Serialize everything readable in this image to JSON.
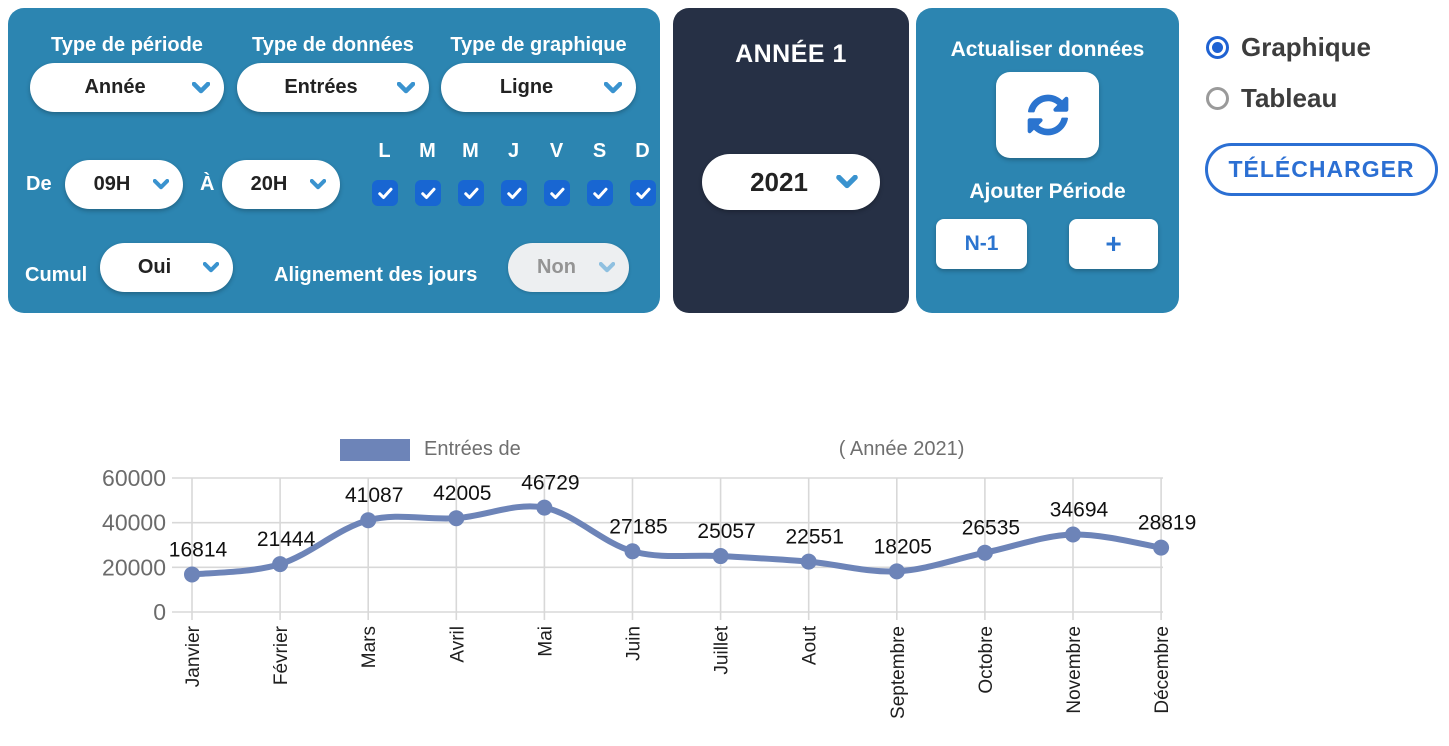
{
  "panel_filters": {
    "period": {
      "label": "Type de période",
      "value": "Année"
    },
    "data_type": {
      "label": "Type de données",
      "value": "Entrées"
    },
    "chart_type": {
      "label": "Type de graphique",
      "value": "Ligne"
    },
    "from_label": "De",
    "from_value": "09H",
    "to_label": "À",
    "to_value": "20H",
    "days": [
      {
        "label": "L",
        "checked": true
      },
      {
        "label": "M",
        "checked": true
      },
      {
        "label": "M",
        "checked": true
      },
      {
        "label": "J",
        "checked": true
      },
      {
        "label": "V",
        "checked": true
      },
      {
        "label": "S",
        "checked": true
      },
      {
        "label": "D",
        "checked": true
      }
    ],
    "cumul_label": "Cumul",
    "cumul_value": "Oui",
    "alignment_label": "Alignement des jours",
    "alignment_value": "Non"
  },
  "panel_year": {
    "title": "ANNÉE 1",
    "value": "2021"
  },
  "panel_actions": {
    "refresh_label": "Actualiser données",
    "add_period_label": "Ajouter Période",
    "n1_label": "N-1",
    "plus_label": "+"
  },
  "view_toggle": {
    "options": [
      {
        "label": "Graphique",
        "selected": true
      },
      {
        "label": "Tableau",
        "selected": false
      }
    ]
  },
  "download_label": "TÉLÉCHARGER",
  "colors": {
    "panel_blue": "#2c85b1",
    "panel_dark": "#263045",
    "checkbox_blue": "#1866d2",
    "accent_blue": "#2b74cf",
    "line_color": "#6d84b8",
    "grid_color": "#d8d8d8",
    "ytick_color": "#6b6b6b",
    "xtick_color": "#1f1f1f",
    "value_label_color": "#111111",
    "legend_text_color": "#6f6f6f"
  },
  "chart_data": {
    "type": "line",
    "categories": [
      "Janvier",
      "Février",
      "Mars",
      "Avril",
      "Mai",
      "Juin",
      "Juillet",
      "Aout",
      "Septembre",
      "Octobre",
      "Novembre",
      "Décembre"
    ],
    "values": [
      16814,
      21444,
      41087,
      42005,
      46729,
      27185,
      25057,
      22551,
      18205,
      26535,
      34694,
      28819
    ],
    "series_name": "Entrées",
    "legend_prefix": "Entrées de",
    "legend_suffix": "( Année 2021)",
    "title": "",
    "xlabel": "",
    "ylabel": "",
    "ylim": [
      0,
      60000
    ],
    "yticks": [
      0,
      20000,
      40000,
      60000
    ],
    "grid": true,
    "legend_position": "top-center"
  }
}
